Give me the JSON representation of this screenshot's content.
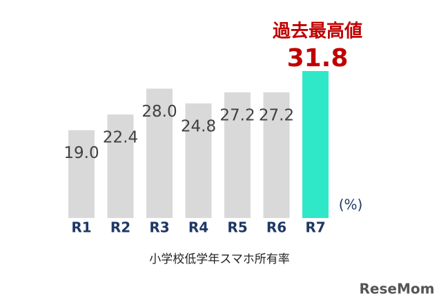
{
  "chart_data": {
    "type": "bar",
    "annotation": "過去最高値",
    "unit_label": "(%)",
    "caption": "小学校低学年スマホ所有率",
    "watermark": "ReseMom",
    "categories": [
      "R1",
      "R2",
      "R3",
      "R4",
      "R5",
      "R6",
      "R7"
    ],
    "values": [
      19,
      22.4,
      28,
      24.8,
      27.2,
      27.2,
      31.8
    ],
    "value_labels": [
      "19.0",
      "22.4",
      "28.0",
      "24.8",
      "27.2",
      "27.2",
      "31.8"
    ],
    "colors": [
      "#d9d9d9",
      "#d9d9d9",
      "#d9d9d9",
      "#d9d9d9",
      "#d9d9d9",
      "#d9d9d9",
      "#2ee8c8"
    ],
    "label_colors": [
      "#404040",
      "#404040",
      "#404040",
      "#404040",
      "#404040",
      "#404040",
      "#c00000"
    ],
    "category_color": "#1f3864"
  }
}
